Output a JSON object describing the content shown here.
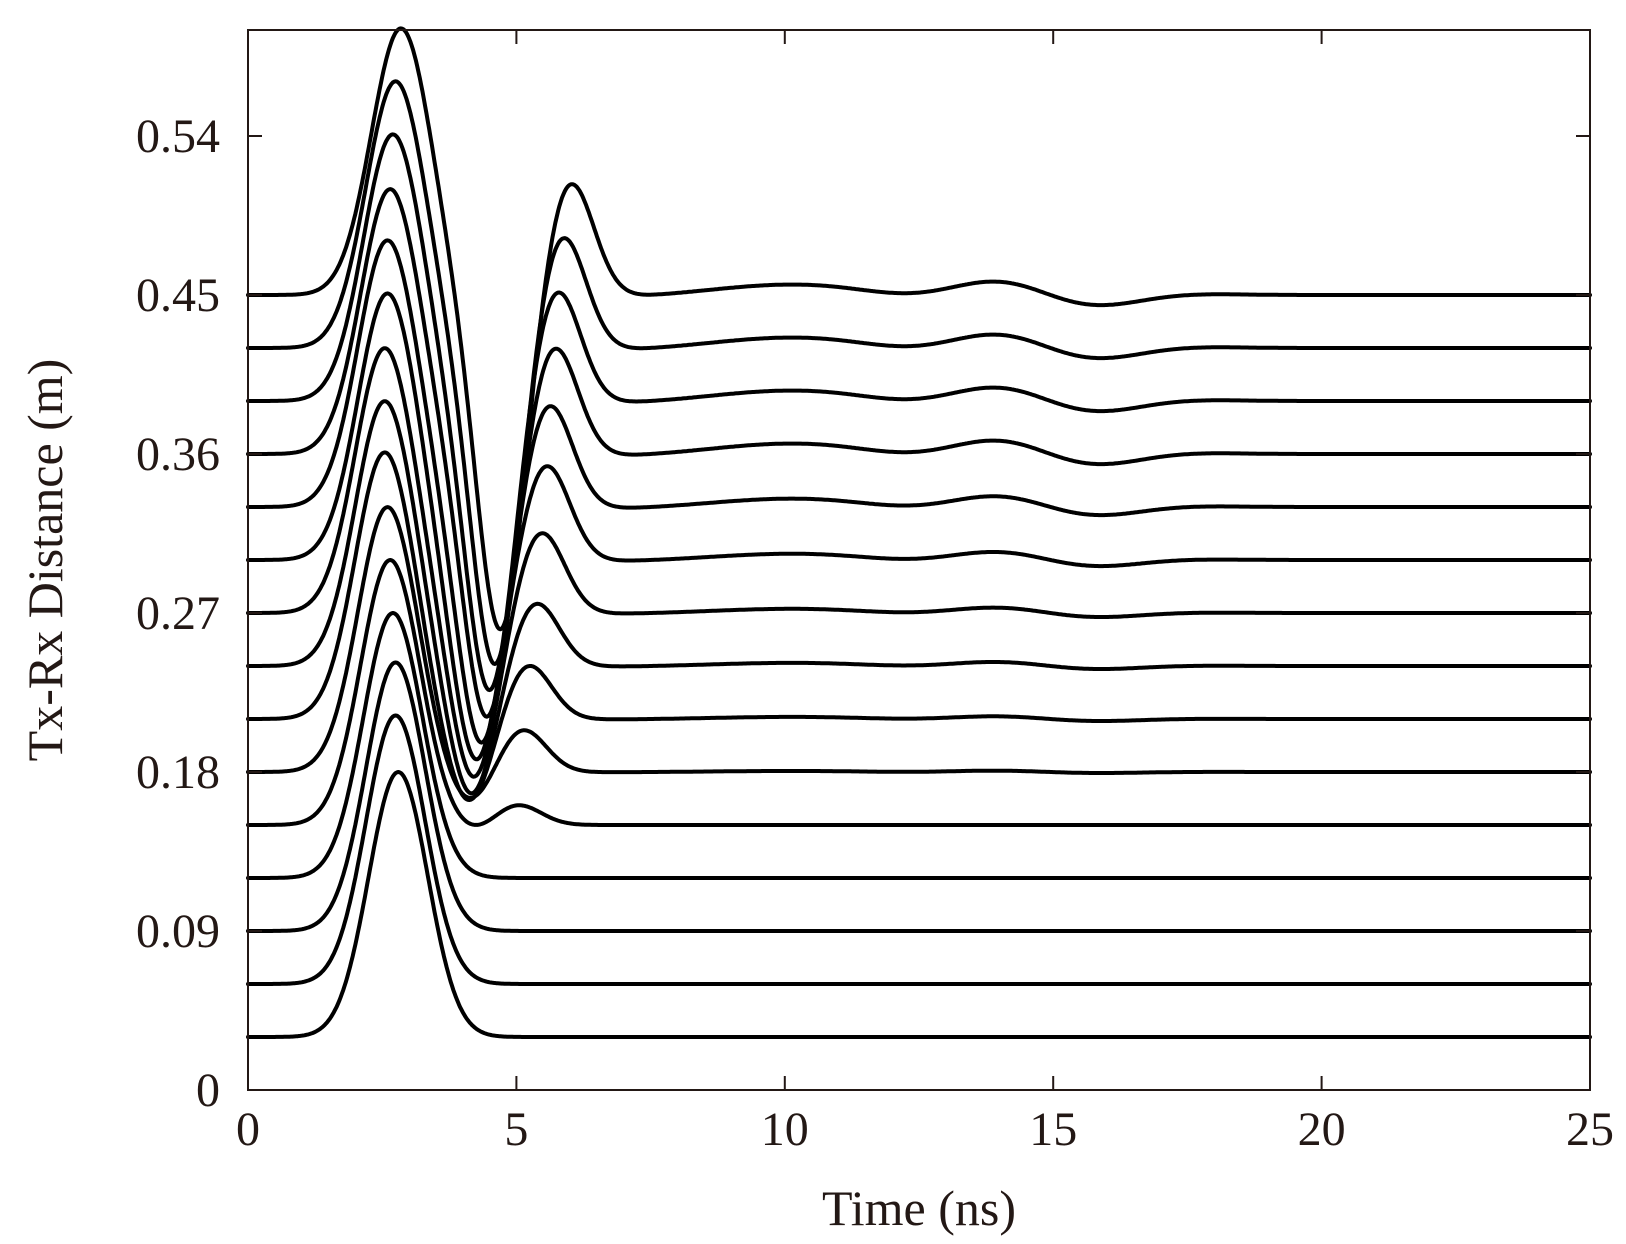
{
  "chart_data": {
    "type": "line",
    "title": "",
    "xlabel": "Time (ns)",
    "ylabel": "Tx-Rx Distance (m)",
    "xlim": [
      0,
      25
    ],
    "ylim": [
      0,
      0.6
    ],
    "xticks": [
      0,
      5,
      10,
      15,
      20,
      25
    ],
    "xtick_labels": [
      "0",
      "5",
      "10",
      "15",
      "20",
      "25"
    ],
    "yticks": [
      0,
      0.09,
      0.18,
      0.27,
      0.36,
      0.45,
      0.54
    ],
    "ytick_labels": [
      "0",
      "0.09",
      "0.18",
      "0.27",
      "0.36",
      "0.45",
      "0.54"
    ],
    "grid": false,
    "legend": "none",
    "color": "#000000",
    "series_note": "Wiggle traces, one per Tx-Rx distance; y value = baseline offset + relative amplitude",
    "series": [
      {
        "name": "0.03 m",
        "offset": 0.03,
        "peak_time": 2.8,
        "peak_amp": 0.15,
        "trough_time": null,
        "trough_amp": 0,
        "reflection_time": null,
        "reflection_amp": 0,
        "tail": 0.0
      },
      {
        "name": "0.06 m",
        "offset": 0.06,
        "peak_time": 2.75,
        "peak_amp": 0.152,
        "trough_time": null,
        "trough_amp": 0,
        "reflection_time": null,
        "reflection_amp": 0,
        "tail": 0.0
      },
      {
        "name": "0.09 m",
        "offset": 0.09,
        "peak_time": 2.75,
        "peak_amp": 0.152,
        "trough_time": null,
        "trough_amp": 0,
        "reflection_time": null,
        "reflection_amp": 0,
        "tail": 0.0
      },
      {
        "name": "0.12 m",
        "offset": 0.12,
        "peak_time": 2.7,
        "peak_amp": 0.15,
        "trough_time": null,
        "trough_amp": 0,
        "reflection_time": null,
        "reflection_amp": 0,
        "tail": 0.0
      },
      {
        "name": "0.15 m",
        "offset": 0.15,
        "peak_time": 2.65,
        "peak_amp": 0.15,
        "trough_time": 4.2,
        "trough_amp": -0.005,
        "reflection_time": 5.0,
        "reflection_amp": 0.012,
        "tail": 0.0
      },
      {
        "name": "0.18 m",
        "offset": 0.18,
        "peak_time": 2.6,
        "peak_amp": 0.15,
        "trough_time": 4.1,
        "trough_amp": -0.02,
        "reflection_time": 5.1,
        "reflection_amp": 0.025,
        "tail": 0.001
      },
      {
        "name": "0.21 m",
        "offset": 0.21,
        "peak_time": 2.55,
        "peak_amp": 0.151,
        "trough_time": 4.1,
        "trough_amp": -0.05,
        "reflection_time": 5.2,
        "reflection_amp": 0.032,
        "tail": 0.002
      },
      {
        "name": "0.24 m",
        "offset": 0.24,
        "peak_time": 2.55,
        "peak_amp": 0.15,
        "trough_time": 4.15,
        "trough_amp": -0.075,
        "reflection_time": 5.35,
        "reflection_amp": 0.037,
        "tail": 0.003
      },
      {
        "name": "0.27 m",
        "offset": 0.27,
        "peak_time": 2.55,
        "peak_amp": 0.15,
        "trough_time": 4.2,
        "trough_amp": -0.095,
        "reflection_time": 5.45,
        "reflection_amp": 0.047,
        "tail": 0.004
      },
      {
        "name": "0.30 m",
        "offset": 0.3,
        "peak_time": 2.6,
        "peak_amp": 0.151,
        "trough_time": 4.25,
        "trough_amp": -0.115,
        "reflection_time": 5.55,
        "reflection_amp": 0.055,
        "tail": 0.006
      },
      {
        "name": "0.33 m",
        "offset": 0.33,
        "peak_time": 2.6,
        "peak_amp": 0.151,
        "trough_time": 4.35,
        "trough_amp": -0.135,
        "reflection_time": 5.6,
        "reflection_amp": 0.06,
        "tail": 0.008
      },
      {
        "name": "0.36 m",
        "offset": 0.36,
        "peak_time": 2.65,
        "peak_amp": 0.15,
        "trough_time": 4.45,
        "trough_amp": -0.15,
        "reflection_time": 5.7,
        "reflection_amp": 0.063,
        "tail": 0.01
      },
      {
        "name": "0.39 m",
        "offset": 0.39,
        "peak_time": 2.7,
        "peak_amp": 0.151,
        "trough_time": 4.5,
        "trough_amp": -0.165,
        "reflection_time": 5.75,
        "reflection_amp": 0.065,
        "tail": 0.01
      },
      {
        "name": "0.42 m",
        "offset": 0.42,
        "peak_time": 2.75,
        "peak_amp": 0.151,
        "trough_time": 4.6,
        "trough_amp": -0.18,
        "reflection_time": 5.85,
        "reflection_amp": 0.066,
        "tail": 0.01
      },
      {
        "name": "0.45 m",
        "offset": 0.45,
        "peak_time": 2.85,
        "peak_amp": 0.151,
        "trough_time": 4.7,
        "trough_amp": -0.19,
        "reflection_time": 6.0,
        "reflection_amp": 0.066,
        "tail": 0.01
      }
    ]
  }
}
